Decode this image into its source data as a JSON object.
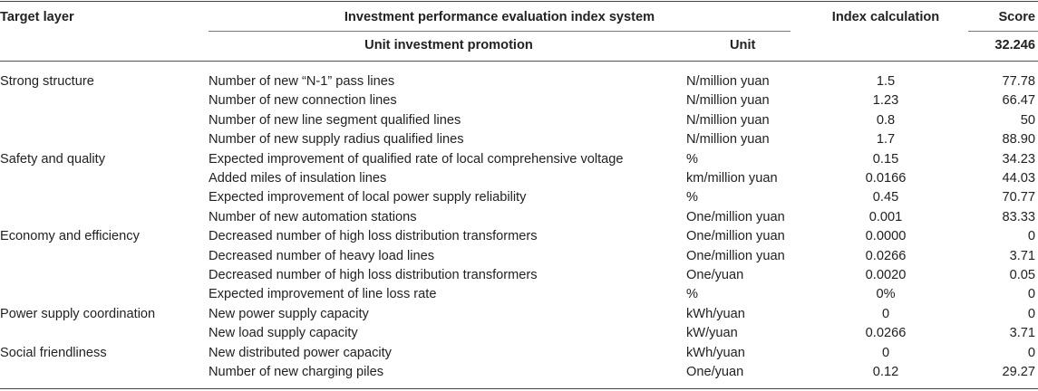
{
  "header": {
    "target_layer": "Target layer",
    "system": "Investment performance evaluation index system",
    "index_calc": "Index calculation",
    "score": "Score",
    "unit_promotion": "Unit investment promotion",
    "unit": "Unit",
    "total_score": "32.246"
  },
  "rows": [
    {
      "target": "Strong structure",
      "indicator": "Number of new “N-1” pass lines",
      "unit": "N/million yuan",
      "calc": "1.5",
      "score": "77.78"
    },
    {
      "target": "",
      "indicator": "Number of new connection lines",
      "unit": "N/million yuan",
      "calc": "1.23",
      "score": "66.47"
    },
    {
      "target": "",
      "indicator": "Number of new line segment qualified lines",
      "unit": "N/million yuan",
      "calc": "0.8",
      "score": "50"
    },
    {
      "target": "",
      "indicator": "Number of new supply radius qualified lines",
      "unit": "N/million yuan",
      "calc": "1.7",
      "score": "88.90"
    },
    {
      "target": "Safety and quality",
      "indicator": "Expected improvement of qualified rate of local comprehensive voltage",
      "unit": "%",
      "calc": "0.15",
      "score": "34.23"
    },
    {
      "target": "",
      "indicator": "Added miles of insulation lines",
      "unit": "km/million yuan",
      "calc": "0.0166",
      "score": "44.03"
    },
    {
      "target": "",
      "indicator": "Expected improvement of local power supply reliability",
      "unit": "%",
      "calc": "0.45",
      "score": "70.77"
    },
    {
      "target": "",
      "indicator": "Number of new automation stations",
      "unit": "One/million yuan",
      "calc": "0.001",
      "score": "83.33"
    },
    {
      "target": "Economy and efficiency",
      "indicator": "Decreased number of high loss distribution transformers",
      "unit": "One/million yuan",
      "calc": "0.0000",
      "score": "0"
    },
    {
      "target": "",
      "indicator": "Decreased number of heavy load lines",
      "unit": "One/million yuan",
      "calc": "0.0266",
      "score": "3.71"
    },
    {
      "target": "",
      "indicator": "Decreased number of high loss distribution transformers",
      "unit": "One/yuan",
      "calc": "0.0020",
      "score": "0.05"
    },
    {
      "target": "",
      "indicator": "Expected improvement of line loss rate",
      "unit": "%",
      "calc": "0%",
      "score": "0"
    },
    {
      "target": "Power supply coordination",
      "indicator": "New power supply capacity",
      "unit": "kWh/yuan",
      "calc": "0",
      "score": "0"
    },
    {
      "target": "",
      "indicator": "New load supply capacity",
      "unit": "kW/yuan",
      "calc": "0.0266",
      "score": "3.71"
    },
    {
      "target": "Social friendliness",
      "indicator": "New distributed power capacity",
      "unit": "kWh/yuan",
      "calc": "0",
      "score": "0"
    },
    {
      "target": "",
      "indicator": "Number of new charging piles",
      "unit": "One/yuan",
      "calc": "0.12",
      "score": "29.27"
    }
  ]
}
